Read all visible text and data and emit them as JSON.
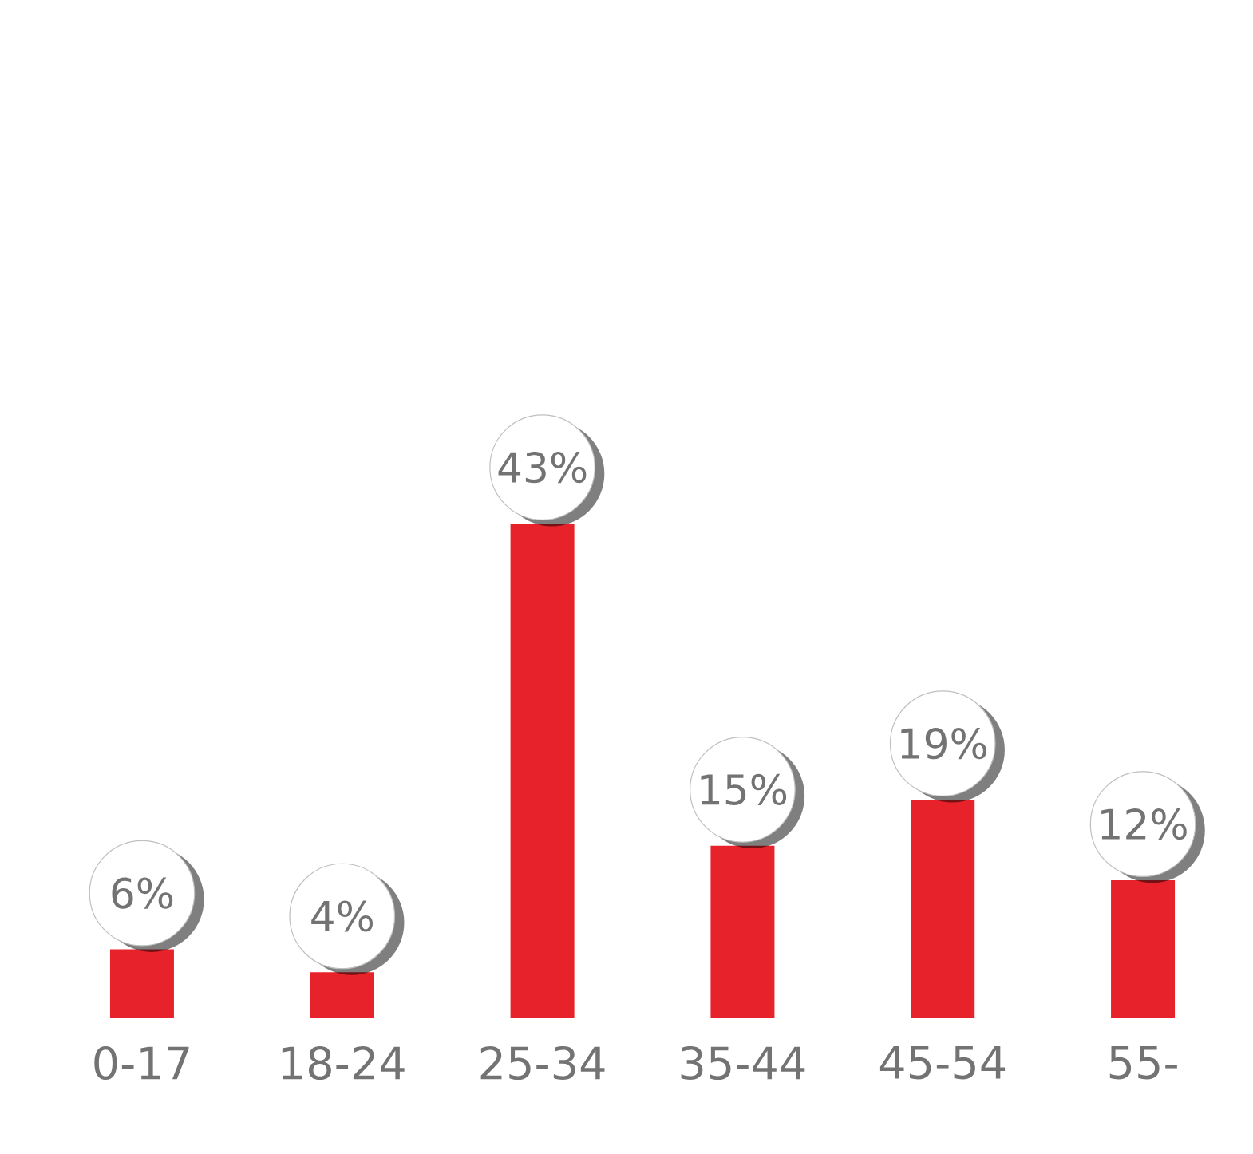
{
  "chart_data": {
    "type": "bar",
    "categories": [
      "0-17",
      "18-24",
      "25-34",
      "35-44",
      "45-54",
      "55-"
    ],
    "values": [
      6,
      4,
      43,
      15,
      19,
      12
    ],
    "value_labels": [
      "6%",
      "4%",
      "43%",
      "15%",
      "19%",
      "12%"
    ],
    "color": "#e8222a"
  }
}
